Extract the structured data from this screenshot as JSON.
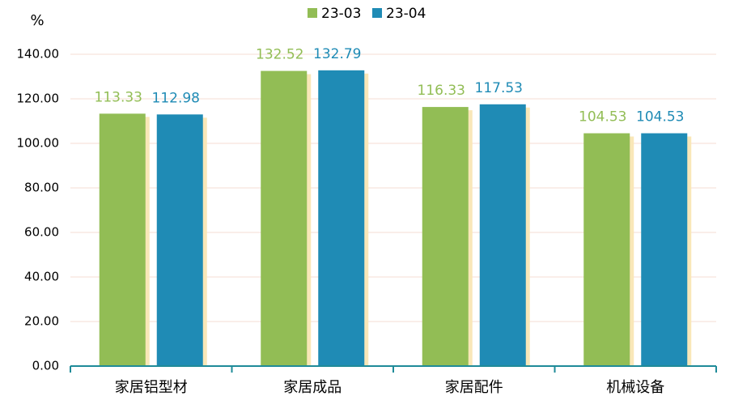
{
  "chart_data": {
    "type": "bar",
    "y_label": "%",
    "categories": [
      "家居铝型材",
      "家居成品",
      "家居配件",
      "机械设备"
    ],
    "series": [
      {
        "name": "23-03",
        "color": "#92bd55",
        "values": [
          113.33,
          132.52,
          116.33,
          104.53
        ]
      },
      {
        "name": "23-04",
        "color": "#1f8bb5",
        "values": [
          112.98,
          132.79,
          117.53,
          104.53
        ]
      }
    ],
    "ylim": [
      0,
      140
    ],
    "yticks": [
      {
        "value": 0,
        "label": "0.00"
      },
      {
        "value": 20,
        "label": "20.00"
      },
      {
        "value": 40,
        "label": "40.00"
      },
      {
        "value": 60,
        "label": "60.00"
      },
      {
        "value": 80,
        "label": "80.00"
      },
      {
        "value": 100,
        "label": "100.00"
      },
      {
        "value": 120,
        "label": "120.00"
      },
      {
        "value": 140,
        "label": "140.00"
      }
    ],
    "grid": true,
    "legend": "top"
  }
}
